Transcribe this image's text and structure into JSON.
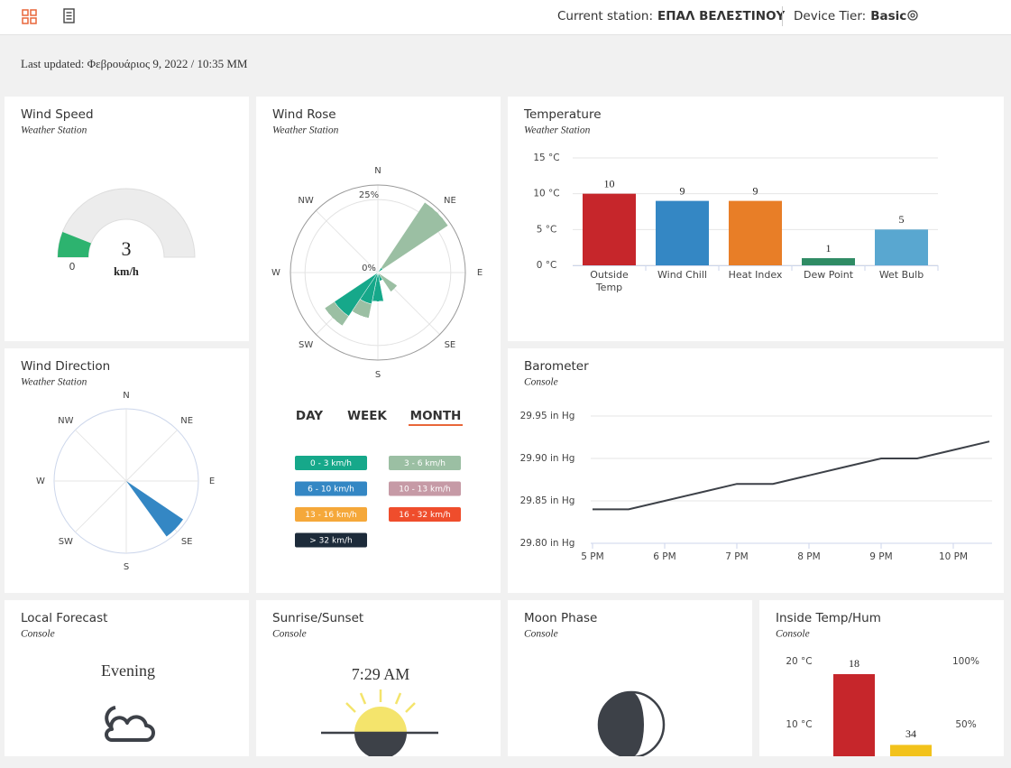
{
  "header": {
    "station_label": "Current station:",
    "station": "ΕΠΑΛ ΒΕΛΕΣΤΙΝΟΥ",
    "tier_label": "Device Tier:",
    "tier": "Basic"
  },
  "last_updated": "Last updated: Φεβρουάριος 9, 2022 / 10:35 ΜΜ",
  "wind_speed": {
    "title": "Wind Speed",
    "subtitle": "Weather Station",
    "chart": {
      "type": "gauge",
      "value": 3,
      "unit": "km/h",
      "range": [
        0,
        25
      ],
      "color": "#2db36f"
    }
  },
  "wind_rose": {
    "title": "Wind Rose",
    "subtitle": "Weather Station",
    "chart": {
      "type": "polar-bar",
      "directions": [
        "N",
        null,
        "NE",
        null,
        "E",
        null,
        "SE",
        null,
        "S",
        null,
        "SW",
        null,
        "W",
        null,
        "NW",
        null
      ],
      "rlim": [
        0,
        30
      ],
      "rticks": [
        {
          "value": 0,
          "label": "0%"
        },
        {
          "value": 25,
          "label": "25%"
        }
      ],
      "series": [
        {
          "name": "0 - 3 km/h",
          "color": "#16a88a",
          "values": [
            0,
            0,
            2,
            0,
            0,
            0,
            0,
            3,
            10,
            11,
            18,
            0,
            0,
            0,
            0,
            0
          ]
        },
        {
          "name": "3 - 6 km/h",
          "color": "#9bbfa3",
          "values": [
            0,
            0,
            27,
            0,
            0,
            0,
            8,
            0,
            0,
            5,
            4,
            0,
            0,
            0,
            0,
            0
          ]
        },
        {
          "name": "6 - 10 km/h",
          "color": "#3487c4",
          "values": [
            0,
            0,
            0,
            0,
            0,
            0,
            0,
            0,
            0,
            0,
            0,
            0,
            0,
            0,
            0,
            0
          ]
        },
        {
          "name": "10 - 13 km/h",
          "color": "#c69aa6",
          "values": [
            0,
            0,
            0,
            0,
            0,
            0,
            0,
            0,
            0,
            0,
            0,
            0,
            0,
            0,
            0,
            0
          ]
        },
        {
          "name": "13 - 16 km/h",
          "color": "#f5a83a",
          "values": [
            0,
            0,
            0,
            0,
            0,
            0,
            0,
            0,
            0,
            0,
            0,
            0,
            0,
            0,
            0,
            0
          ]
        },
        {
          "name": "16 - 32 km/h",
          "color": "#ef4d2c",
          "values": [
            0,
            0,
            0,
            0,
            0,
            0,
            0,
            0,
            0,
            0,
            0,
            0,
            0,
            0,
            0,
            0
          ]
        },
        {
          "name": "> 32 km/h",
          "color": "#1d2b3a",
          "values": [
            0,
            0,
            0,
            0,
            0,
            0,
            0,
            0,
            0,
            0,
            0,
            0,
            0,
            0,
            0,
            0
          ]
        }
      ]
    },
    "periods": [
      "DAY",
      "WEEK",
      "MONTH"
    ],
    "active_period": 2
  },
  "temperature": {
    "title": "Temperature",
    "subtitle": "Weather Station",
    "chart": {
      "type": "bar",
      "categories": [
        "Outside Temp",
        "Wind Chill",
        "Heat Index",
        "Dew Point",
        "Wet Bulb"
      ],
      "values": [
        10,
        9,
        9,
        1,
        5
      ],
      "colors": [
        "#c6262b",
        "#3487c4",
        "#e87e27",
        "#2e8b64",
        "#59a7d0"
      ],
      "ylim": [
        0,
        15
      ],
      "yticks": [
        {
          "value": 0,
          "label": "0 °C"
        },
        {
          "value": 5,
          "label": "5 °C"
        },
        {
          "value": 10,
          "label": "10 °C"
        },
        {
          "value": 15,
          "label": "15 °C"
        }
      ],
      "grid": true
    }
  },
  "wind_direction": {
    "title": "Wind Direction",
    "subtitle": "Weather Station",
    "chart": {
      "type": "compass",
      "directions": [
        "N",
        "NE",
        "E",
        "SE",
        "S",
        "SW",
        "W",
        "NW"
      ],
      "value": 134,
      "color": "#3487c4"
    }
  },
  "barometer": {
    "title": "Barometer",
    "subtitle": "Console",
    "chart": {
      "type": "line",
      "x": [
        17,
        17.5,
        18,
        18.5,
        19,
        19.5,
        20,
        20.5,
        21,
        21.5,
        22,
        22.5
      ],
      "values": [
        29.84,
        29.84,
        29.85,
        29.86,
        29.87,
        29.87,
        29.88,
        29.89,
        29.9,
        29.9,
        29.91,
        29.92
      ],
      "color": "#3d4148",
      "xlim": [
        17,
        22.5
      ],
      "xticks": [
        {
          "value": 17,
          "label": "5 PM"
        },
        {
          "value": 18,
          "label": "6 PM"
        },
        {
          "value": 19,
          "label": "7 PM"
        },
        {
          "value": 20,
          "label": "8 PM"
        },
        {
          "value": 21,
          "label": "9 PM"
        },
        {
          "value": 22,
          "label": "10 PM"
        }
      ],
      "ylim": [
        29.8,
        29.95
      ],
      "yticks": [
        {
          "value": 29.8,
          "label": "29.80 in Hg"
        },
        {
          "value": 29.85,
          "label": "29.85 in Hg"
        },
        {
          "value": 29.9,
          "label": "29.90 in Hg"
        },
        {
          "value": 29.95,
          "label": "29.95 in Hg"
        }
      ],
      "grid": true
    }
  },
  "local_forecast": {
    "title": "Local Forecast",
    "subtitle": "Console",
    "forecast": "Evening"
  },
  "sunrise": {
    "title": "Sunrise/Sunset",
    "subtitle": "Console",
    "time": "7:29 AM"
  },
  "moon": {
    "title": "Moon Phase",
    "subtitle": "Console"
  },
  "inside": {
    "title": "Inside Temp/Hum",
    "subtitle": "Console",
    "chart": {
      "type": "dual-bar",
      "bars": [
        {
          "value": 18,
          "color": "#c6262b",
          "axis": "y"
        },
        {
          "value": 34,
          "color": "#f2c21b",
          "axis": "y2"
        }
      ],
      "ylim": [
        0,
        20
      ],
      "yticks": [
        {
          "value": 10,
          "label": "10 °C"
        },
        {
          "value": 20,
          "label": "20 °C"
        }
      ],
      "y2lim": [
        0,
        100
      ],
      "y2ticks": [
        {
          "value": 50,
          "label": "50%"
        },
        {
          "value": 100,
          "label": "100%"
        }
      ]
    }
  }
}
